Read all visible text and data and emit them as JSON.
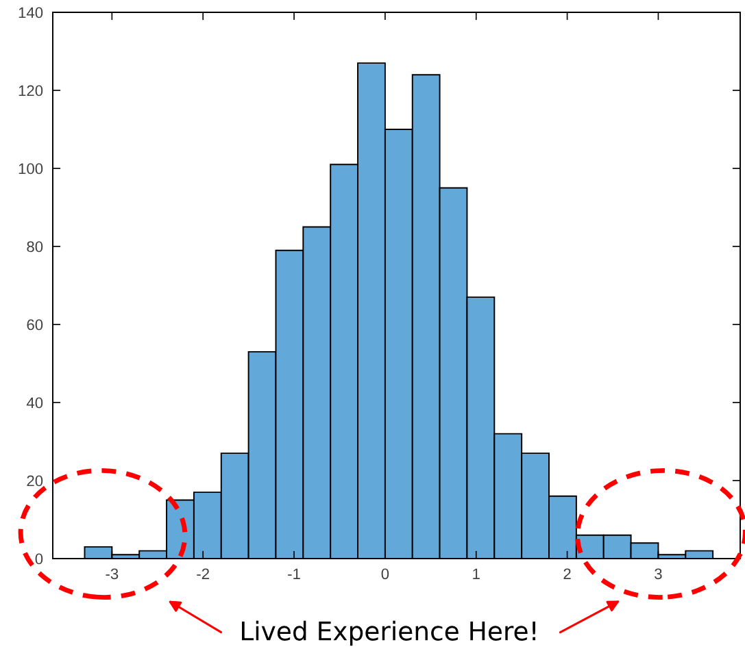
{
  "chart_data": {
    "type": "histogram",
    "bins": [
      -3.3,
      -3.0,
      -2.7,
      -2.4,
      -2.1,
      -1.8,
      -1.5,
      -1.2,
      -0.9,
      -0.6,
      -0.3,
      0,
      0.3,
      0.6,
      0.9,
      1.2,
      1.5,
      1.8,
      2.1,
      2.4,
      2.7,
      3.0,
      3.3,
      3.6
    ],
    "values": [
      3,
      1,
      2,
      15,
      17,
      27,
      53,
      79,
      85,
      101,
      127,
      110,
      124,
      95,
      67,
      32,
      27,
      16,
      6,
      6,
      4,
      1,
      2
    ],
    "color": "#62a8d8",
    "xlim": [
      -3.65,
      3.9
    ],
    "xticks": [
      -3,
      -2,
      -1,
      0,
      1,
      2,
      3
    ],
    "ylim": [
      0,
      140
    ],
    "yticks": [
      0,
      20,
      40,
      60,
      80,
      100,
      120,
      140
    ],
    "grid": false,
    "annotations": [
      "Lived Experience Here!"
    ]
  }
}
